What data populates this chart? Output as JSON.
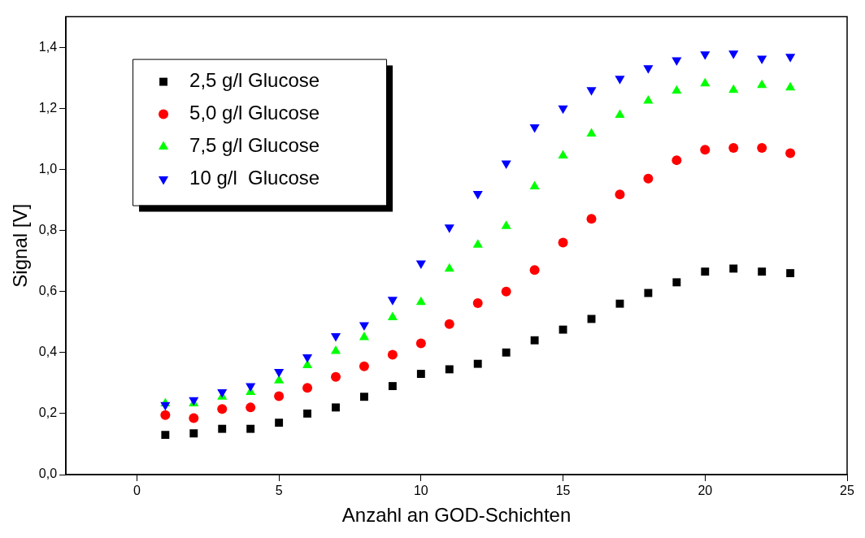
{
  "chart_data": {
    "type": "scatter",
    "xlabel": "Anzahl an GOD-Schichten",
    "ylabel": "Signal [V]",
    "x": [
      1,
      2,
      3,
      4,
      5,
      6,
      7,
      8,
      9,
      10,
      11,
      12,
      13,
      14,
      15,
      16,
      17,
      18,
      19,
      20,
      21,
      22,
      23
    ],
    "xlim": [
      -2.5,
      25
    ],
    "xticks": [
      0,
      5,
      10,
      15,
      20,
      25
    ],
    "ylim": [
      0,
      1.5
    ],
    "yticks": [
      {
        "value": 0,
        "label": "0,0"
      },
      {
        "value": 0.2,
        "label": "0,2"
      },
      {
        "value": 0.4,
        "label": "0,4"
      },
      {
        "value": 0.6,
        "label": "0,6"
      },
      {
        "value": 0.8,
        "label": "0,8"
      },
      {
        "value": 1.0,
        "label": "1,0"
      },
      {
        "value": 1.2,
        "label": "1,2"
      },
      {
        "value": 1.4,
        "label": "1,4"
      }
    ],
    "grid": false,
    "legend": "top left",
    "series": [
      {
        "name": "2,5 g/l Glucose",
        "color": "#000000",
        "marker": "square",
        "values": [
          0.13,
          0.135,
          0.15,
          0.15,
          0.17,
          0.2,
          0.22,
          0.255,
          0.29,
          0.33,
          0.345,
          0.363,
          0.4,
          0.44,
          0.475,
          0.51,
          0.56,
          0.595,
          0.63,
          0.665,
          0.675,
          0.665,
          0.66
        ]
      },
      {
        "name": "5,0 g/l Glucose",
        "color": "#ff0000",
        "marker": "circle",
        "values": [
          0.195,
          0.185,
          0.215,
          0.22,
          0.257,
          0.284,
          0.32,
          0.355,
          0.393,
          0.43,
          0.493,
          0.562,
          0.6,
          0.67,
          0.76,
          0.838,
          0.918,
          0.97,
          1.03,
          1.064,
          1.07,
          1.07,
          1.053
        ]
      },
      {
        "name": "7,5 g/l Glucose",
        "color": "#00ff00",
        "marker": "triangle",
        "values": [
          0.233,
          0.233,
          0.255,
          0.27,
          0.308,
          0.358,
          0.405,
          0.45,
          0.515,
          0.565,
          0.674,
          0.753,
          0.814,
          0.944,
          1.045,
          1.117,
          1.178,
          1.225,
          1.257,
          1.281,
          1.26,
          1.276,
          1.268
        ]
      },
      {
        "name": "10 g/l  Glucose",
        "color": "#0000ff",
        "marker": "triangle-down",
        "values": [
          0.228,
          0.244,
          0.27,
          0.29,
          0.337,
          0.385,
          0.454,
          0.49,
          0.573,
          0.692,
          0.81,
          0.92,
          1.02,
          1.138,
          1.2,
          1.26,
          1.297,
          1.332,
          1.358,
          1.377,
          1.38,
          1.363,
          1.369
        ]
      }
    ]
  }
}
